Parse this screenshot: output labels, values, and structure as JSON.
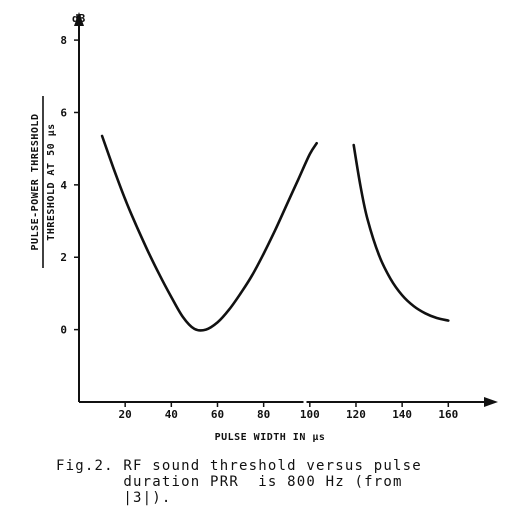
{
  "chart_data": {
    "type": "line",
    "ylabel_top": "PULSE-POWER THRESHOLD",
    "ylabel_bottom": "THRESHOLD AT 50 µs",
    "y_unit": "dB",
    "xlabel": "PULSE WIDTH IN µs",
    "xlim": [
      0,
      172
    ],
    "ylim": [
      -2,
      8.5
    ],
    "x_ticks": [
      {
        "value": 20,
        "label": "20"
      },
      {
        "value": 40,
        "label": "40"
      },
      {
        "value": 60,
        "label": "60"
      },
      {
        "value": 80,
        "label": "80"
      },
      {
        "value": 100,
        "label": "100"
      },
      {
        "value": 120,
        "label": "120"
      },
      {
        "value": 140,
        "label": "140"
      },
      {
        "value": 160,
        "label": "160"
      }
    ],
    "y_ticks": [
      {
        "value": 0,
        "label": "0"
      },
      {
        "value": 2,
        "label": "2"
      },
      {
        "value": 4,
        "label": "4"
      },
      {
        "value": 6,
        "label": "6"
      },
      {
        "value": 8,
        "label": "8"
      }
    ],
    "series": [
      {
        "segment": "left",
        "x": [
          10,
          15,
          20,
          25,
          30,
          35,
          40,
          45,
          50,
          55,
          60,
          65,
          70,
          75,
          80,
          85,
          90,
          95,
          100,
          103
        ],
        "y": [
          5.35,
          4.45,
          3.6,
          2.85,
          2.15,
          1.5,
          0.9,
          0.35,
          0.02,
          0.0,
          0.2,
          0.55,
          1.0,
          1.5,
          2.1,
          2.75,
          3.45,
          4.15,
          4.85,
          5.15
        ]
      },
      {
        "segment": "right",
        "x": [
          119,
          122,
          125,
          130,
          135,
          140,
          145,
          150,
          155,
          160
        ],
        "y": [
          5.1,
          3.95,
          3.05,
          2.05,
          1.4,
          0.95,
          0.65,
          0.45,
          0.32,
          0.25
        ]
      }
    ]
  },
  "caption": {
    "line1": "Fig.2. RF sound threshold versus pulse",
    "line2": "       duration PRR  is 800 Hz (from",
    "line3": "       |3|)."
  }
}
